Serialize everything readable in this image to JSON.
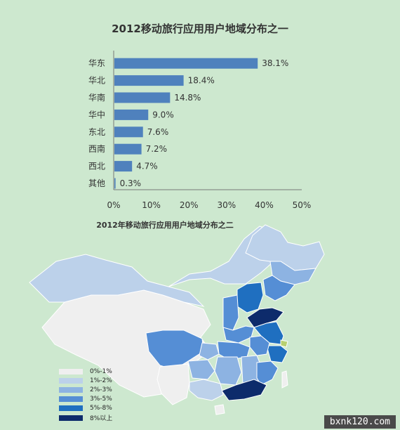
{
  "chart_data": [
    {
      "type": "bar",
      "orientation": "horizontal",
      "title": "2012移动旅行应用用户地域分布之一",
      "categories": [
        "华东",
        "华北",
        "华南",
        "华中",
        "东北",
        "西南",
        "西北",
        "其他"
      ],
      "values": [
        38.1,
        18.4,
        14.8,
        9.0,
        7.6,
        7.2,
        4.7,
        0.3
      ],
      "value_labels": [
        "38.1%",
        "18.4%",
        "14.8%",
        "9.0%",
        "7.6%",
        "7.2%",
        "4.7%",
        "0.3%"
      ],
      "xlim": [
        0,
        50
      ],
      "xticks": [
        "0%",
        "10%",
        "20%",
        "30%",
        "40%",
        "50%"
      ],
      "bar_color": "#4f81bd",
      "grid": false
    },
    {
      "type": "choropleth",
      "title": "2012年移动旅行应用用户地域分布之二",
      "legend": [
        {
          "label": "0%-1%",
          "color": "#efefef"
        },
        {
          "label": "1%-2%",
          "color": "#bcd1ea"
        },
        {
          "label": "2%-3%",
          "color": "#8db3e2"
        },
        {
          "label": "3%-5%",
          "color": "#558ed5"
        },
        {
          "label": "5%-8%",
          "color": "#1f6fc0"
        },
        {
          "label": "8%以上",
          "color": "#0d2b6b"
        }
      ]
    }
  ],
  "watermark": "bxnk120.com"
}
